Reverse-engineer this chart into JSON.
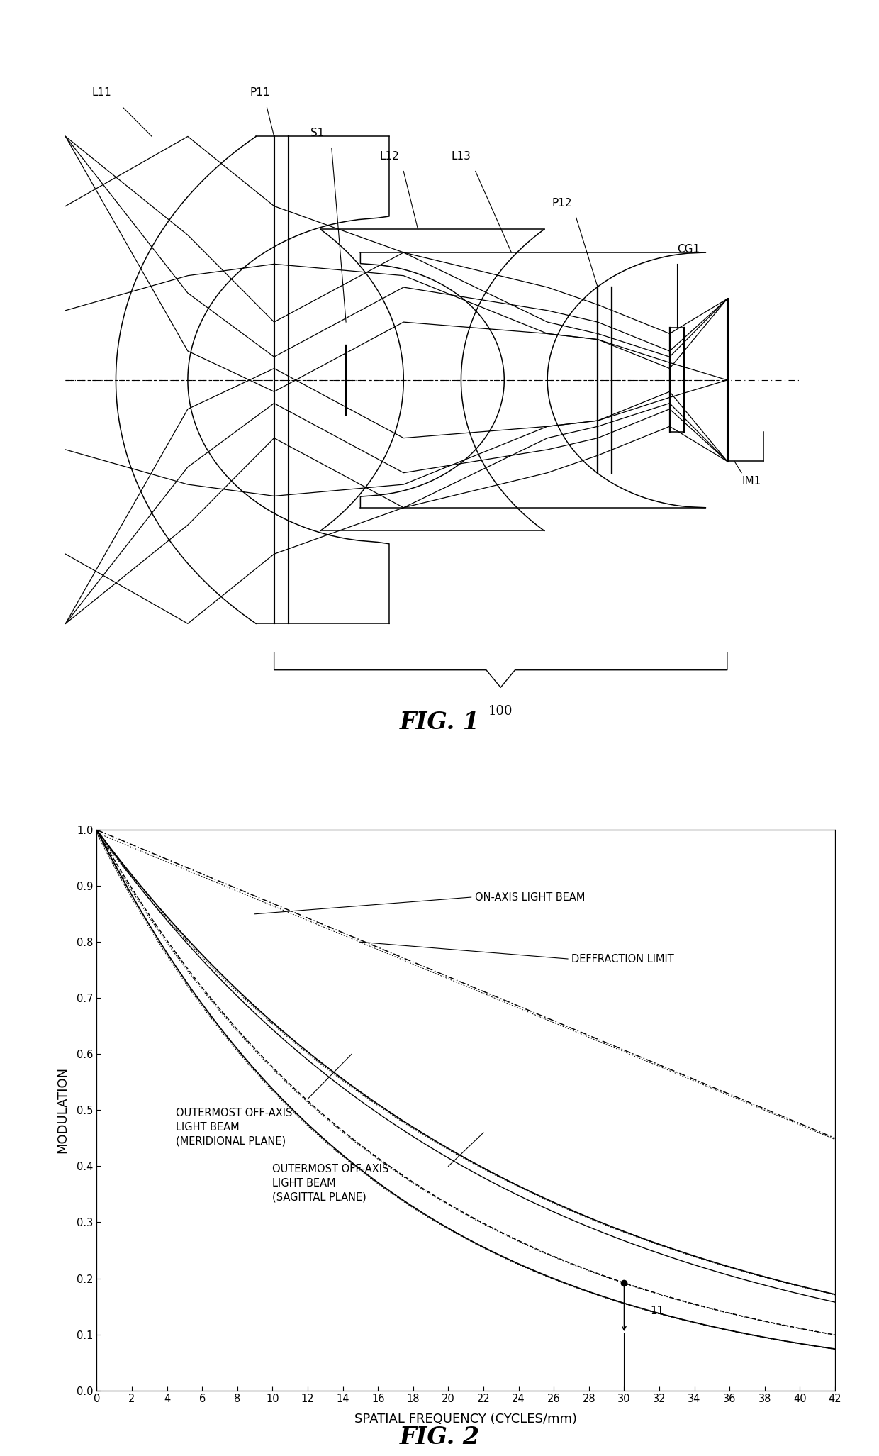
{
  "fig1_title": "FIG. 1",
  "fig2_title": "FIG. 2",
  "fig2_xlabel": "SPATIAL FREQUENCY (CYCLES/mm)",
  "fig2_ylabel": "MODULATION",
  "fig2_xlim": [
    0,
    42
  ],
  "fig2_ylim": [
    0,
    1
  ],
  "fig2_xticks": [
    0,
    2,
    4,
    6,
    8,
    10,
    12,
    14,
    16,
    18,
    20,
    22,
    24,
    26,
    28,
    30,
    32,
    34,
    36,
    38,
    40,
    42
  ],
  "fig2_yticks": [
    0,
    0.1,
    0.2,
    0.3,
    0.4,
    0.5,
    0.6,
    0.7,
    0.8,
    0.9,
    1
  ],
  "annotation_label": "11",
  "label_on_axis": "ON-AXIS LIGHT BEAM",
  "label_diffraction": "DEFFRACTION LIMIT",
  "label_meridional": "OUTERMOST OFF-AXIS\nLIGHT BEAM\n(MERIDIONAL PLANE)",
  "label_sagittal": "OUTERMOST OFF-AXIS\nLIGHT BEAM\n(SAGITTAL PLANE)",
  "background_color": "#ffffff",
  "line_color": "#000000"
}
